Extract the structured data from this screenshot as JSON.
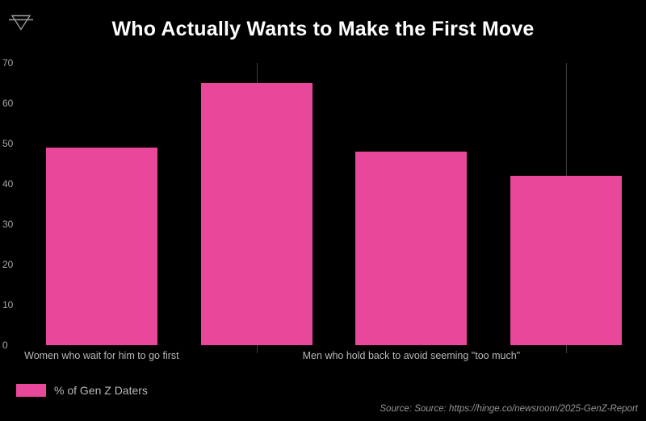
{
  "header": {
    "title": "Who Actually Wants to Make the First Move"
  },
  "chart_data": {
    "type": "bar",
    "title": "Who Actually Wants to Make the First Move",
    "categories": [
      "Women who wait for him to go first",
      "",
      "Men who hold back to avoid seeming \"too much\"",
      ""
    ],
    "values": [
      49,
      65,
      48,
      42
    ],
    "series": [
      {
        "name": "% of Gen Z Daters",
        "values": [
          49,
          65,
          48,
          42
        ]
      }
    ],
    "xlabel": "",
    "ylabel": "",
    "ylim": [
      0,
      70
    ],
    "yticks": [
      0,
      10,
      20,
      30,
      40,
      50,
      60,
      70
    ],
    "bar_color": "#e8479a",
    "background_color": "#000000",
    "grid": "vertical-partial",
    "x_gridline_indices": [
      1,
      3
    ],
    "legend_position": "bottom-left"
  },
  "legend": {
    "label": "% of Gen Z Daters",
    "swatch_color": "#e8479a"
  },
  "footer": {
    "source_text": "Source: Source: https://hinge.co/newsroom/2025-GenZ-Report"
  }
}
